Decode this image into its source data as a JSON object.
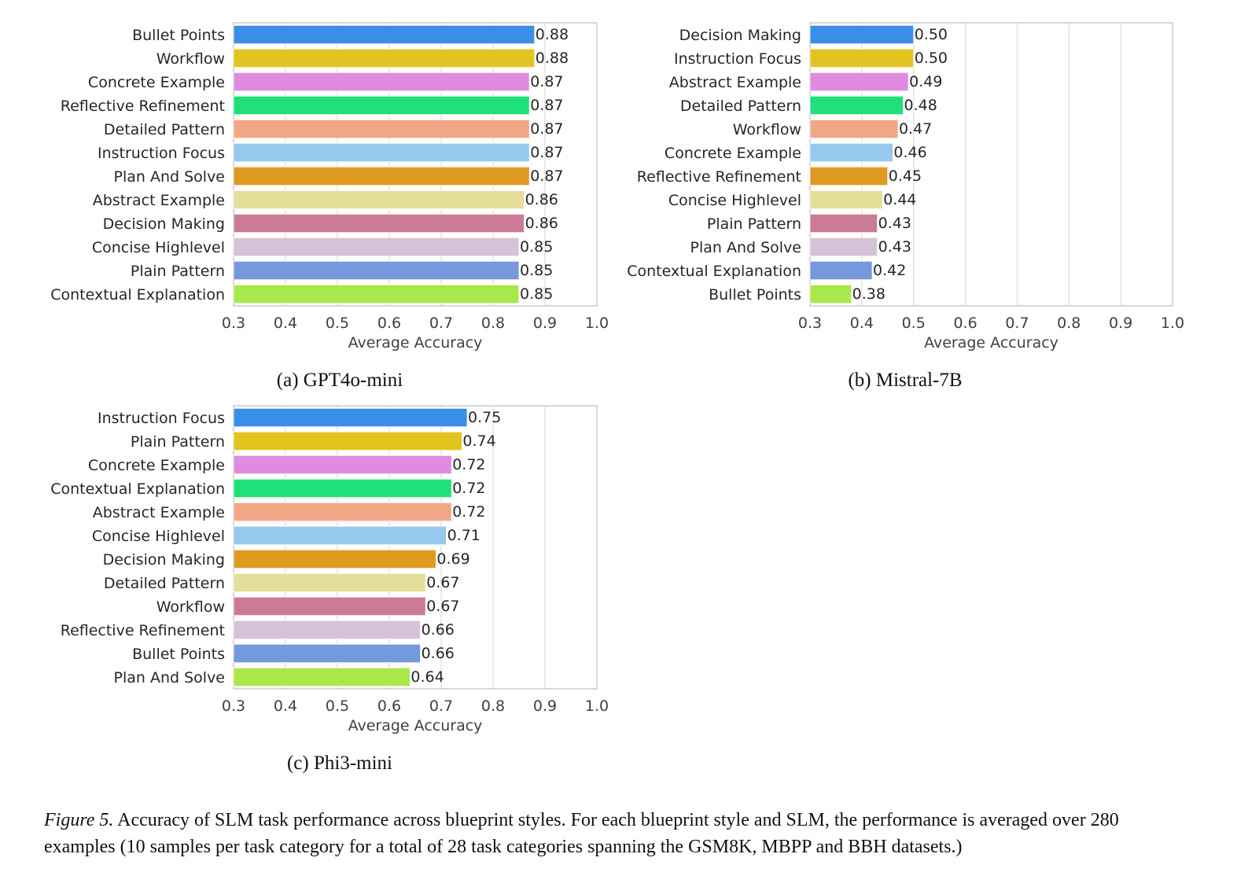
{
  "chart_data": [
    {
      "type": "bar",
      "orientation": "horizontal",
      "caption": "(a) GPT4o-mini",
      "xlabel": "Average Accuracy",
      "xlim": [
        0.3,
        1.0
      ],
      "xticks": [
        "0.3",
        "0.4",
        "0.5",
        "0.6",
        "0.7",
        "0.8",
        "0.9",
        "1.0"
      ],
      "grid": true,
      "categories": [
        "Bullet Points",
        "Workflow",
        "Concrete Example",
        "Reflective Refinement",
        "Detailed Pattern",
        "Instruction Focus",
        "Plan And Solve",
        "Abstract Example",
        "Decision Making",
        "Concise Highlevel",
        "Plain Pattern",
        "Contextual Explanation"
      ],
      "values": [
        0.88,
        0.88,
        0.87,
        0.87,
        0.87,
        0.87,
        0.87,
        0.86,
        0.86,
        0.85,
        0.85,
        0.85
      ],
      "labels": [
        "0.88",
        "0.88",
        "0.87",
        "0.87",
        "0.87",
        "0.87",
        "0.87",
        "0.86",
        "0.86",
        "0.85",
        "0.85",
        "0.85"
      ]
    },
    {
      "type": "bar",
      "orientation": "horizontal",
      "caption": "(b) Mistral-7B",
      "xlabel": "Average Accuracy",
      "xlim": [
        0.3,
        1.0
      ],
      "xticks": [
        "0.3",
        "0.4",
        "0.5",
        "0.6",
        "0.7",
        "0.8",
        "0.9",
        "1.0"
      ],
      "grid": true,
      "categories": [
        "Decision Making",
        "Instruction Focus",
        "Abstract Example",
        "Detailed Pattern",
        "Workflow",
        "Concrete Example",
        "Reflective Refinement",
        "Concise Highlevel",
        "Plain Pattern",
        "Plan And Solve",
        "Contextual Explanation",
        "Bullet Points"
      ],
      "values": [
        0.5,
        0.5,
        0.49,
        0.48,
        0.47,
        0.46,
        0.45,
        0.44,
        0.43,
        0.43,
        0.42,
        0.38
      ],
      "labels": [
        "0.50",
        "0.50",
        "0.49",
        "0.48",
        "0.47",
        "0.46",
        "0.45",
        "0.44",
        "0.43",
        "0.43",
        "0.42",
        "0.38"
      ]
    },
    {
      "type": "bar",
      "orientation": "horizontal",
      "caption": "(c) Phi3-mini",
      "xlabel": "Average Accuracy",
      "xlim": [
        0.3,
        1.0
      ],
      "xticks": [
        "0.3",
        "0.4",
        "0.5",
        "0.6",
        "0.7",
        "0.8",
        "0.9",
        "1.0"
      ],
      "grid": true,
      "categories": [
        "Instruction Focus",
        "Plain Pattern",
        "Concrete Example",
        "Contextual Explanation",
        "Abstract Example",
        "Concise Highlevel",
        "Decision Making",
        "Detailed Pattern",
        "Workflow",
        "Reflective Refinement",
        "Bullet Points",
        "Plan And Solve"
      ],
      "values": [
        0.75,
        0.74,
        0.72,
        0.72,
        0.72,
        0.71,
        0.69,
        0.67,
        0.67,
        0.66,
        0.66,
        0.64
      ],
      "labels": [
        "0.75",
        "0.74",
        "0.72",
        "0.72",
        "0.72",
        "0.71",
        "0.69",
        "0.67",
        "0.67",
        "0.66",
        "0.66",
        "0.64"
      ]
    }
  ],
  "bar_colors": [
    "#3b8ee8",
    "#e2c31f",
    "#e08be2",
    "#1fe07a",
    "#f2a685",
    "#96c9ec",
    "#e09a22",
    "#e4de99",
    "#cc7b97",
    "#d5c2d8",
    "#7599dd",
    "#a8e84a"
  ],
  "colors": {
    "grid": "#dddddd",
    "frame": "#cccccc",
    "text": "#262626"
  },
  "figure_caption": {
    "label": "Figure 5.",
    "text": " Accuracy of SLM task performance across blueprint styles. For each blueprint style and SLM, the performance is averaged over 280 examples (10 samples per task category for a total of 28 task categories spanning the GSM8K, MBPP and BBH datasets.)"
  }
}
